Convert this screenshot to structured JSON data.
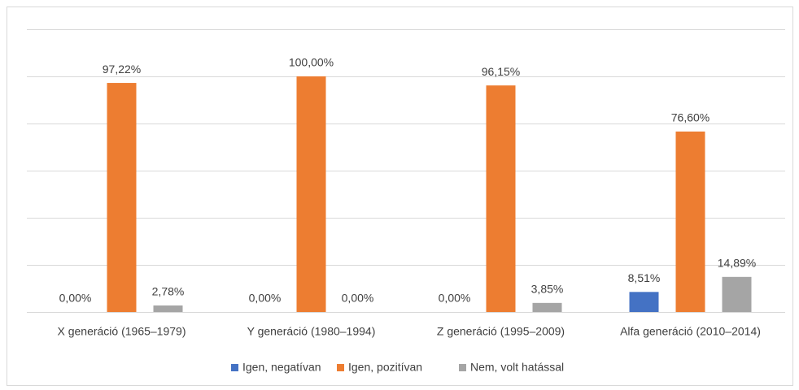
{
  "chart_data": {
    "type": "bar",
    "categories": [
      "X generáció (1965–1979)",
      "Y generáció (1980–1994)",
      "Z generáció (1995–2009)",
      "Alfa generáció (2010–2014)"
    ],
    "series": [
      {
        "name": "Igen, negatívan",
        "color": "#4472c4",
        "values": [
          0,
          0,
          0,
          8.51
        ],
        "value_labels": [
          "0,00%",
          "0,00%",
          "0,00%",
          "8,51%"
        ]
      },
      {
        "name": "Igen, pozitívan",
        "color": "#ed7d31",
        "values": [
          97.22,
          100,
          96.15,
          76.6
        ],
        "value_labels": [
          "97,22%",
          "100,00%",
          "96,15%",
          "76,60%"
        ]
      },
      {
        "name": "Nem, volt hatással",
        "color": "#a5a5a5",
        "values": [
          2.78,
          0,
          3.85,
          14.89
        ],
        "value_labels": [
          "2,78%",
          "0,00%",
          "3,85%",
          "14,89%"
        ]
      }
    ],
    "ylim": [
      0,
      120
    ],
    "yticks": [
      0,
      20,
      40,
      60,
      80,
      100,
      120
    ],
    "grid": true,
    "legend": "bottom"
  }
}
